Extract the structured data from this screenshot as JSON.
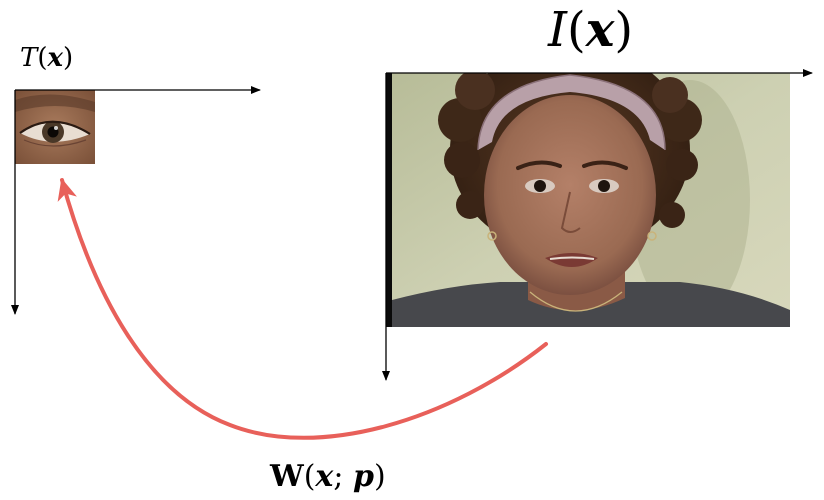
{
  "template": {
    "label_func": "T",
    "label_var": "x"
  },
  "image": {
    "label_func": "I",
    "label_var": "x"
  },
  "warp": {
    "label_func": "W",
    "label_args": "x; p",
    "label_var1": "x",
    "label_sep": ";",
    "label_var2": "p"
  },
  "colors": {
    "warp_arrow": "#e8605a",
    "axis": "#000000"
  },
  "icons": {
    "template_patch": "eye-photo",
    "face_image": "face-photo"
  }
}
